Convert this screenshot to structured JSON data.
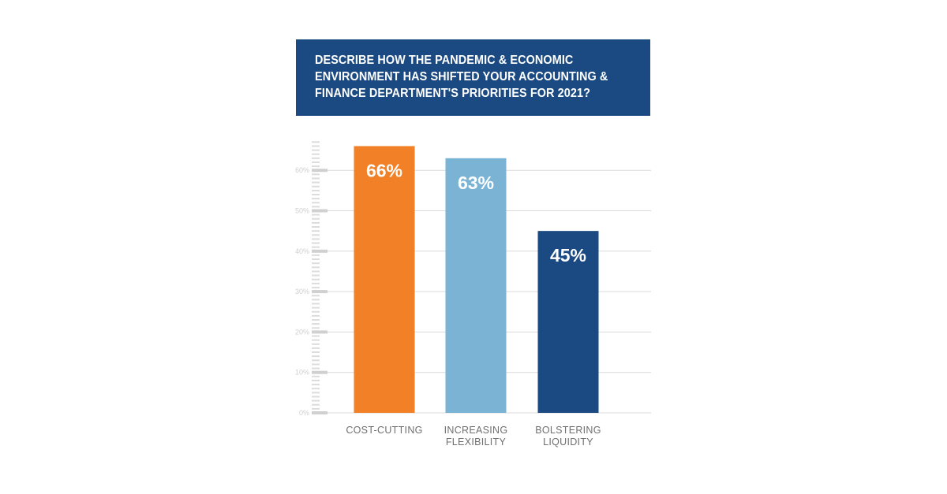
{
  "title_lines": [
    "DESCRIBE HOW THE PANDEMIC & ECONOMIC",
    "ENVIRONMENT HAS SHIFTED YOUR ACCOUNTING &",
    "FINANCE DEPARTMENT'S PRIORITIES FOR 2021?"
  ],
  "colors": {
    "title_background": "#1b4a82",
    "cost_cutting": "#f28026",
    "increasing_flexibility": "#7ab3d4",
    "bolstering_liquidity": "#1b4a82",
    "gridline": "#d9d9d9",
    "tick_label": "#cfcfcf",
    "category_label": "#6f6f6f"
  },
  "chart_data": {
    "type": "bar",
    "title": "DESCRIBE HOW THE PANDEMIC & ECONOMIC ENVIRONMENT HAS SHIFTED YOUR ACCOUNTING & FINANCE DEPARTMENT'S PRIORITIES FOR 2021?",
    "categories": [
      [
        "COST-CUTTING"
      ],
      [
        "INCREASING",
        "FLEXIBILITY"
      ],
      [
        "BOLSTERING",
        "LIQUIDITY"
      ]
    ],
    "values": [
      66,
      63,
      45
    ],
    "data_labels": [
      "66%",
      "63%",
      "45%"
    ],
    "bar_colors": [
      "#f28026",
      "#7ab3d4",
      "#1b4a82"
    ],
    "yticks": [
      0,
      10,
      20,
      30,
      40,
      50,
      60
    ],
    "ytick_labels": [
      "0%",
      "10%",
      "20%",
      "30%",
      "40%",
      "50%",
      "60%"
    ],
    "ylim": [
      0,
      70
    ],
    "grid": true,
    "legend": "none",
    "xlabel": "",
    "ylabel": ""
  }
}
